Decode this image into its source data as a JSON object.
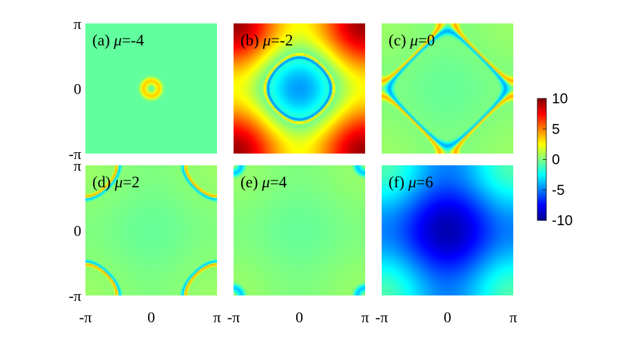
{
  "chart_data": {
    "type": "heatmap",
    "colormap": "jet",
    "grid": false,
    "panels": [
      {
        "id": "a",
        "label_prefix": "(a) ",
        "symbol": "μ",
        "label_value": "=-4",
        "mu": -4
      },
      {
        "id": "b",
        "label_prefix": "(b) ",
        "symbol": "μ",
        "label_value": "=-2",
        "mu": -2
      },
      {
        "id": "c",
        "label_prefix": "(c) ",
        "symbol": "μ",
        "label_value": "=0",
        "mu": 0
      },
      {
        "id": "d",
        "label_prefix": "(d) ",
        "symbol": "μ",
        "label_value": "=2",
        "mu": 2
      },
      {
        "id": "e",
        "label_prefix": "(e) ",
        "symbol": "μ",
        "label_value": "=4",
        "mu": 4
      },
      {
        "id": "f",
        "label_prefix": "(f) ",
        "symbol": "μ",
        "label_value": "=6",
        "mu": 6
      }
    ],
    "x_ticks": [
      "-π",
      "0",
      "π"
    ],
    "y_ticks": [
      "π",
      "0",
      "-π"
    ],
    "xlim": [
      -3.14159,
      3.14159
    ],
    "ylim": [
      -3.14159,
      3.14159
    ],
    "colorbar": {
      "range": [
        -10,
        10
      ],
      "ticks": [
        "10",
        "5",
        "0",
        "-5",
        "-10"
      ]
    }
  }
}
